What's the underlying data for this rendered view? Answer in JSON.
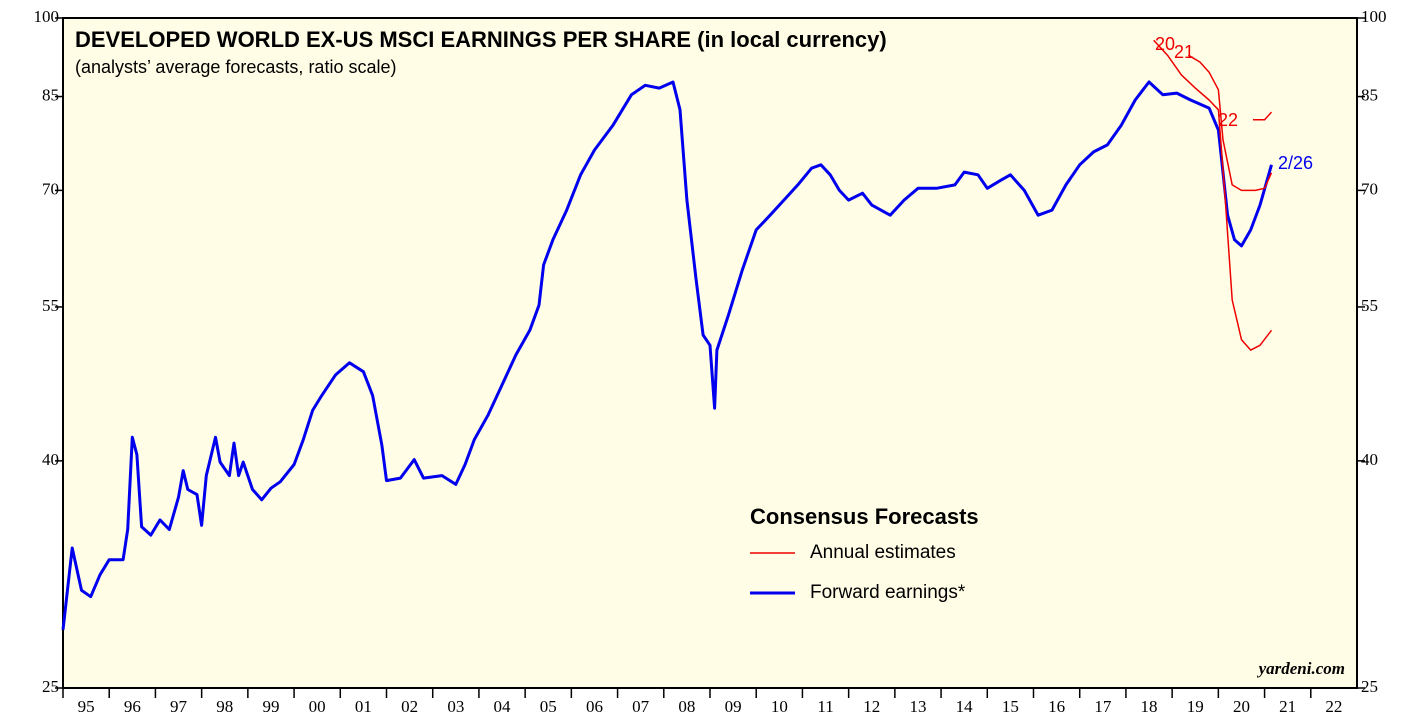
{
  "chart_data": {
    "type": "line",
    "title": "DEVELOPED WORLD EX-US MSCI EARNINGS PER SHARE (in local currency)",
    "subtitle": "(analysts’ average forecasts, ratio scale)",
    "legend_title": "Consensus Forecasts",
    "source": "yardeni.com",
    "log_scale": true,
    "xlim": [
      1995,
      2023
    ],
    "xticks": [
      {
        "value": 1995,
        "label": "95"
      },
      {
        "value": 1996,
        "label": "96"
      },
      {
        "value": 1997,
        "label": "97"
      },
      {
        "value": 1998,
        "label": "98"
      },
      {
        "value": 1999,
        "label": "99"
      },
      {
        "value": 2000,
        "label": "00"
      },
      {
        "value": 2001,
        "label": "01"
      },
      {
        "value": 2002,
        "label": "02"
      },
      {
        "value": 2003,
        "label": "03"
      },
      {
        "value": 2004,
        "label": "04"
      },
      {
        "value": 2005,
        "label": "05"
      },
      {
        "value": 2006,
        "label": "06"
      },
      {
        "value": 2007,
        "label": "07"
      },
      {
        "value": 2008,
        "label": "08"
      },
      {
        "value": 2009,
        "label": "09"
      },
      {
        "value": 2010,
        "label": "10"
      },
      {
        "value": 2011,
        "label": "11"
      },
      {
        "value": 2012,
        "label": "12"
      },
      {
        "value": 2013,
        "label": "13"
      },
      {
        "value": 2014,
        "label": "14"
      },
      {
        "value": 2015,
        "label": "15"
      },
      {
        "value": 2016,
        "label": "16"
      },
      {
        "value": 2017,
        "label": "17"
      },
      {
        "value": 2018,
        "label": "18"
      },
      {
        "value": 2019,
        "label": "19"
      },
      {
        "value": 2020,
        "label": "20"
      },
      {
        "value": 2021,
        "label": "21"
      },
      {
        "value": 2022,
        "label": "22"
      }
    ],
    "ylim": [
      25,
      100
    ],
    "yticks": [
      25,
      40,
      55,
      70,
      85,
      100
    ],
    "series": [
      {
        "name": "Forward earnings*",
        "color": "#0000ee",
        "x": [
          1995.0,
          1995.2,
          1995.4,
          1995.6,
          1995.8,
          1996.0,
          1996.3,
          1996.4,
          1996.5,
          1996.6,
          1996.7,
          1996.9,
          1997.1,
          1997.3,
          1997.5,
          1997.6,
          1997.7,
          1997.9,
          1998.0,
          1998.1,
          1998.3,
          1998.4,
          1998.6,
          1998.7,
          1998.8,
          1998.9,
          1999.1,
          1999.3,
          1999.5,
          1999.7,
          2000.0,
          2000.2,
          2000.4,
          2000.6,
          2000.9,
          2001.2,
          2001.5,
          2001.7,
          2001.9,
          2002.0,
          2002.3,
          2002.6,
          2002.8,
          2003.2,
          2003.5,
          2003.7,
          2003.9,
          2004.2,
          2004.5,
          2004.8,
          2005.1,
          2005.3,
          2005.4,
          2005.6,
          2005.9,
          2006.2,
          2006.5,
          2006.9,
          2007.3,
          2007.6,
          2007.9,
          2008.2,
          2008.35,
          2008.5,
          2008.7,
          2008.85,
          2009.0,
          2009.1,
          2009.15,
          2009.4,
          2009.7,
          2010.0,
          2010.3,
          2010.6,
          2010.9,
          2011.2,
          2011.4,
          2011.6,
          2011.8,
          2012.0,
          2012.3,
          2012.5,
          2012.9,
          2013.2,
          2013.5,
          2013.9,
          2014.3,
          2014.5,
          2014.8,
          2015.0,
          2015.3,
          2015.5,
          2015.8,
          2016.1,
          2016.4,
          2016.7,
          2017.0,
          2017.3,
          2017.6,
          2017.9,
          2018.2,
          2018.5,
          2018.8,
          2019.1,
          2019.4,
          2019.8,
          2020.0,
          2020.2,
          2020.35,
          2020.5,
          2020.7,
          2020.9,
          2021.15
        ],
        "values": [
          28.2,
          33.4,
          30.6,
          30.2,
          31.6,
          32.6,
          32.6,
          34.7,
          42.0,
          40.5,
          34.9,
          34.3,
          35.4,
          34.7,
          37.1,
          39.2,
          37.7,
          37.3,
          35.0,
          38.8,
          42.0,
          39.9,
          38.8,
          41.5,
          38.8,
          39.9,
          37.7,
          36.9,
          37.8,
          38.3,
          39.7,
          41.8,
          44.4,
          45.8,
          47.8,
          49.0,
          48.1,
          45.8,
          41.3,
          38.4,
          38.6,
          40.1,
          38.6,
          38.8,
          38.1,
          39.7,
          41.8,
          44.0,
          46.8,
          49.8,
          52.4,
          55.2,
          60.0,
          63.2,
          67.2,
          72.3,
          76.1,
          80.1,
          85.3,
          87.0,
          86.5,
          87.6,
          82.7,
          68.6,
          58.2,
          51.9,
          50.8,
          44.6,
          50.3,
          54.1,
          59.4,
          64.5,
          66.5,
          68.6,
          70.8,
          73.3,
          73.8,
          72.3,
          70.0,
          68.6,
          69.6,
          67.9,
          66.5,
          68.6,
          70.3,
          70.3,
          70.8,
          72.7,
          72.3,
          70.3,
          71.5,
          72.3,
          70.0,
          66.5,
          67.2,
          70.8,
          73.8,
          75.8,
          76.9,
          80.1,
          84.4,
          87.6,
          85.3,
          85.6,
          84.4,
          83.0,
          79.3,
          66.5,
          63.2,
          62.4,
          64.5,
          67.9,
          73.8
        ]
      },
      {
        "name": "Annual estimates",
        "color": "#ee0000",
        "x": [
          2018.6,
          2018.9,
          2019.2,
          2019.5,
          2019.8,
          2020.0,
          2020.15,
          2020.3,
          2020.5,
          2020.7,
          2020.9,
          2021.15
        ],
        "values": [
          95.5,
          92.6,
          88.9,
          86.5,
          84.4,
          82.7,
          68.6,
          55.8,
          51.4,
          50.3,
          50.8,
          52.4
        ]
      },
      {
        "color": "#ee0000",
        "x": [
          2019.35,
          2019.6,
          2019.8,
          2020.0,
          2020.1,
          2020.3,
          2020.5,
          2020.8,
          2021.0,
          2021.15
        ],
        "values": [
          92.6,
          91.3,
          89.4,
          86.2,
          77.7,
          70.8,
          70.0,
          70.0,
          70.3,
          72.6
        ]
      },
      {
        "color": "#ee0000",
        "x": [
          2020.75,
          2021.0,
          2021.15
        ],
        "values": [
          81.0,
          81.0,
          82.3
        ]
      }
    ],
    "annotations": [
      "20",
      "21",
      "22",
      "2/26"
    ]
  }
}
